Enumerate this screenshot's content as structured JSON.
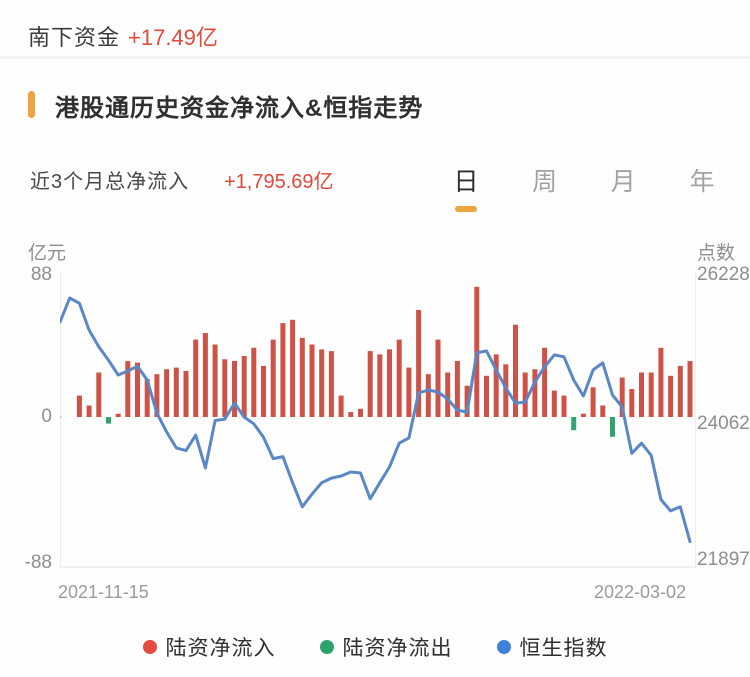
{
  "header": {
    "label": "南下资金",
    "value": "+17.49亿"
  },
  "section": {
    "title": "港股通历史资金净流入&恒指走势"
  },
  "summary": {
    "label": "近3个月总净流入",
    "value": "+1,795.69亿"
  },
  "tabs": [
    {
      "label": "日",
      "active": true
    },
    {
      "label": "周",
      "active": false
    },
    {
      "label": "月",
      "active": false
    },
    {
      "label": "年",
      "active": false
    }
  ],
  "chart_data": {
    "type": "bar+line",
    "title": "港股通历史资金净流入&恒指走势",
    "left_axis": {
      "title": "亿元",
      "ticks": [
        "88",
        "0",
        "-88"
      ],
      "range": [
        -88,
        88
      ]
    },
    "right_axis": {
      "title": "点数",
      "ticks": [
        "26228",
        "24062",
        "21897"
      ],
      "range": [
        21897,
        26228
      ]
    },
    "x_labels": [
      "2021-11-15",
      "2022-03-02"
    ],
    "grid": false,
    "legend_position": "bottom",
    "series": [
      {
        "name": "陆资净流入/净流出",
        "type": "bar",
        "unit": "亿元",
        "values": [
          null,
          null,
          13,
          7,
          27,
          -4,
          2,
          34,
          33,
          23,
          26,
          29,
          30,
          28,
          47,
          51,
          44,
          35,
          34,
          37,
          42,
          31,
          47,
          57,
          59,
          48,
          44,
          41,
          40,
          13,
          3,
          5,
          40,
          38,
          41,
          47,
          30,
          65,
          26,
          47,
          27,
          34,
          19,
          79,
          25,
          38,
          32,
          56,
          27,
          29,
          42,
          16,
          13,
          -8,
          2,
          18,
          7,
          -12,
          24,
          17,
          27,
          27,
          42,
          25,
          31,
          34
        ]
      },
      {
        "name": "恒生指数",
        "type": "line",
        "unit": "点",
        "values": [
          25480,
          25840,
          25760,
          25360,
          25110,
          24910,
          24690,
          24750,
          24820,
          24615,
          24120,
          23840,
          23600,
          23560,
          23790,
          23300,
          24010,
          24030,
          24270,
          24060,
          23960,
          23760,
          23440,
          23470,
          23080,
          22720,
          22910,
          23080,
          23150,
          23180,
          23240,
          23225,
          22840,
          23080,
          23315,
          23670,
          23750,
          24420,
          24465,
          24435,
          24330,
          24165,
          24135,
          25020,
          25050,
          24765,
          24495,
          24270,
          24285,
          24585,
          24810,
          24990,
          24960,
          24615,
          24375,
          24765,
          24870,
          24390,
          24210,
          23520,
          23670,
          23490,
          22830,
          22660,
          22720,
          22200
        ]
      }
    ],
    "colors": {
      "inflow": "#cd5348",
      "outflow": "#31a370",
      "line": "#5a87c5",
      "axis": "#ececec"
    }
  },
  "legend": [
    {
      "label": "陆资净流入",
      "color": "#e54c3f"
    },
    {
      "label": "陆资净流出",
      "color": "#2ba36d"
    },
    {
      "label": "恒生指数",
      "color": "#3f82dd"
    }
  ]
}
